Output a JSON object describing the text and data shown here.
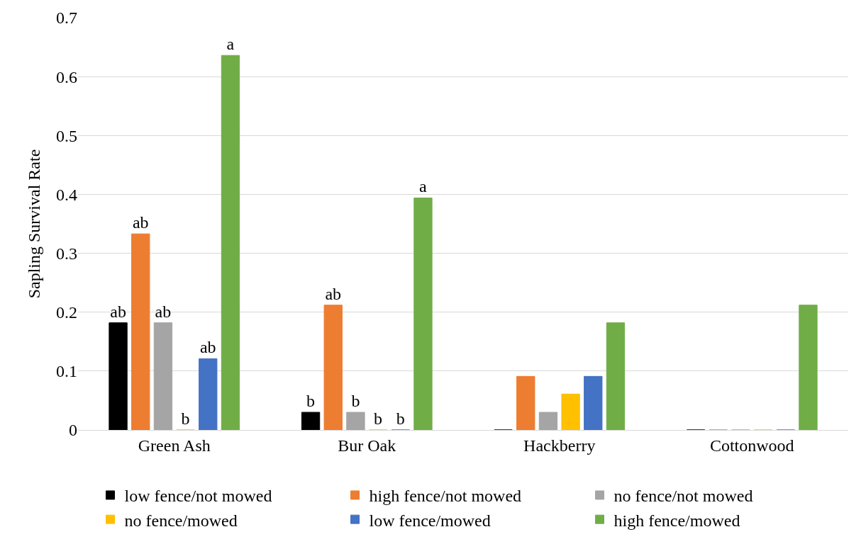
{
  "chart_data": {
    "type": "bar",
    "ylabel": "Sapling Survival Rate",
    "categories": [
      "Green Ash",
      "Bur Oak",
      "Hackberry",
      "Cottonwood"
    ],
    "series": [
      {
        "name": "low fence/not mowed",
        "color": "#000000",
        "values": [
          0.182,
          0.03,
          0,
          0
        ],
        "value_labels": [
          "ab",
          "b",
          null,
          null
        ]
      },
      {
        "name": "high fence/not mowed",
        "color": "#ed7d31",
        "values": [
          0.333,
          0.212,
          0.091,
          0
        ],
        "value_labels": [
          "ab",
          "ab",
          null,
          null
        ]
      },
      {
        "name": "no fence/not mowed",
        "color": "#a5a5a5",
        "values": [
          0.182,
          0.03,
          0.03,
          0
        ],
        "value_labels": [
          "ab",
          "b",
          null,
          null
        ]
      },
      {
        "name": "no fence/mowed",
        "color": "#ffc000",
        "values": [
          0,
          0,
          0.061,
          0
        ],
        "value_labels": [
          "b",
          "b",
          null,
          null
        ]
      },
      {
        "name": "low fence/mowed",
        "color": "#4472c4",
        "values": [
          0.121,
          0,
          0.091,
          0
        ],
        "value_labels": [
          "ab",
          "b",
          null,
          null
        ]
      },
      {
        "name": "high fence/mowed",
        "color": "#70ad47",
        "values": [
          0.636,
          0.394,
          0.182,
          0.212
        ],
        "value_labels": [
          "a",
          "a",
          null,
          null
        ]
      }
    ],
    "ylim": [
      0,
      0.7
    ],
    "yticks": [
      0,
      0.1,
      0.2,
      0.3,
      0.4,
      0.5,
      0.6,
      0.7
    ],
    "grid": "y",
    "legend": "bottom"
  }
}
